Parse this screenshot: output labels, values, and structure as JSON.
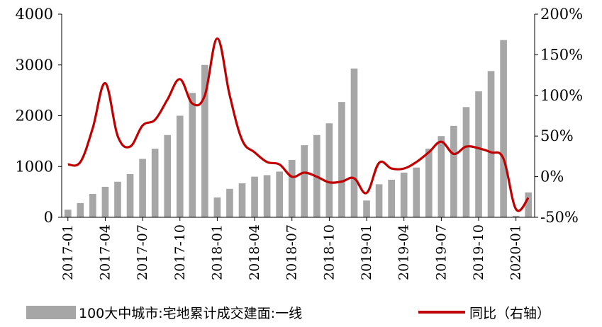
{
  "chart_data": {
    "type": "bar",
    "categories": [
      "2017-01",
      "2017-02",
      "2017-03",
      "2017-04",
      "2017-05",
      "2017-06",
      "2017-07",
      "2017-08",
      "2017-09",
      "2017-10",
      "2017-11",
      "2017-12",
      "2018-01",
      "2018-02",
      "2018-03",
      "2018-04",
      "2018-05",
      "2018-06",
      "2018-07",
      "2018-08",
      "2018-09",
      "2018-10",
      "2018-11",
      "2018-12",
      "2019-01",
      "2019-02",
      "2019-03",
      "2019-04",
      "2019-05",
      "2019-06",
      "2019-07",
      "2019-08",
      "2019-09",
      "2019-10",
      "2019-11",
      "2019-12",
      "2020-01",
      "2020-02"
    ],
    "x_tick_labels": [
      "2017-01",
      "2017-04",
      "2017-07",
      "2017-10",
      "2018-01",
      "2018-04",
      "2018-07",
      "2018-10",
      "2019-01",
      "2019-04",
      "2019-07",
      "2019-10",
      "2020-01"
    ],
    "series": [
      {
        "name": "100大中城市:宅地累计成交建面:一线",
        "axis": "left",
        "type": "bar",
        "color": "#a6a6a6",
        "values": [
          150,
          280,
          460,
          600,
          700,
          850,
          1150,
          1350,
          1620,
          2000,
          2450,
          3000,
          390,
          560,
          670,
          800,
          830,
          900,
          1130,
          1420,
          1620,
          1850,
          2270,
          2930,
          330,
          650,
          740,
          880,
          980,
          1350,
          1600,
          1800,
          2170,
          2480,
          2880,
          3490,
          30,
          490
        ]
      },
      {
        "name": "同比（右轴）",
        "axis": "right",
        "type": "line",
        "color": "#c00000",
        "values": [
          15,
          18,
          60,
          115,
          50,
          37,
          63,
          70,
          95,
          120,
          90,
          100,
          170,
          100,
          45,
          30,
          18,
          15,
          0,
          5,
          0,
          -7,
          -6,
          -2,
          -20,
          17,
          10,
          10,
          18,
          30,
          43,
          28,
          37,
          35,
          30,
          22,
          -40,
          -26
        ]
      }
    ],
    "y_left": {
      "min": 0,
      "max": 4000,
      "ticks": [
        0,
        1000,
        2000,
        3000,
        4000
      ]
    },
    "y_right": {
      "min": -50,
      "max": 200,
      "ticks": [
        "-50%",
        "0%",
        "50%",
        "100%",
        "150%",
        "200%"
      ]
    },
    "legend_position": "bottom"
  }
}
